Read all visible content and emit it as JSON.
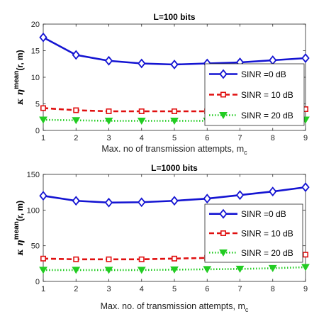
{
  "chart_data": [
    {
      "type": "line",
      "title": "L=100 bits",
      "xlabel": "Max. no of transmission attempts, m",
      "xlabel_sub": "c",
      "ylabel": "κ η",
      "ylabel_sup": "mean",
      "ylabel_suffix": "(r, m)",
      "x": [
        1,
        2,
        3,
        4,
        5,
        6,
        7,
        8,
        9
      ],
      "xlim": [
        1,
        9
      ],
      "ylim": [
        0,
        20
      ],
      "yticks": [
        0,
        5,
        10,
        15,
        20
      ],
      "grid": false,
      "legend_position": "right",
      "series": [
        {
          "name": "SINR =0 dB",
          "color": "#1414d2",
          "marker": "diamond",
          "line": "solid",
          "values": [
            17.5,
            14.2,
            13.1,
            12.6,
            12.4,
            12.6,
            12.8,
            13.2,
            13.6
          ]
        },
        {
          "name": "SINR = 10 dB",
          "color": "#e01010",
          "marker": "square",
          "line": "dashed",
          "values": [
            4.2,
            3.8,
            3.6,
            3.6,
            3.6,
            3.6,
            3.8,
            3.8,
            4.0
          ]
        },
        {
          "name": "SINR = 20 dB",
          "color": "#22cc22",
          "marker": "triangle-down",
          "line": "dotted",
          "values": [
            2.0,
            1.9,
            1.8,
            1.8,
            1.8,
            1.8,
            1.9,
            1.9,
            2.0
          ]
        }
      ]
    },
    {
      "type": "line",
      "title": "L=1000 bits",
      "xlabel": "Max. no. of  transmission attempts,  m",
      "xlabel_sub": "c",
      "ylabel": "κ η",
      "ylabel_sup": "mean",
      "ylabel_suffix": "(r, m)",
      "x": [
        1,
        2,
        3,
        4,
        5,
        6,
        7,
        8,
        9
      ],
      "xlim": [
        1,
        9
      ],
      "ylim": [
        0,
        150
      ],
      "yticks": [
        0,
        50,
        100,
        150
      ],
      "grid": false,
      "legend_position": "right",
      "series": [
        {
          "name": "SINR =0 dB",
          "color": "#1414d2",
          "marker": "diamond",
          "line": "solid",
          "values": [
            120,
            113,
            110.5,
            111,
            113,
            116,
            121,
            126,
            132
          ]
        },
        {
          "name": "SINR = 10 dB",
          "color": "#e01010",
          "marker": "square",
          "line": "dashed",
          "values": [
            32,
            31,
            31,
            31,
            32,
            33,
            34,
            35.5,
            37.5
          ]
        },
        {
          "name": "SINR = 20 dB",
          "color": "#22cc22",
          "marker": "triangle-down",
          "line": "dotted",
          "values": [
            16,
            16,
            16,
            16,
            16.5,
            17,
            17.5,
            18.5,
            20
          ]
        }
      ]
    }
  ]
}
